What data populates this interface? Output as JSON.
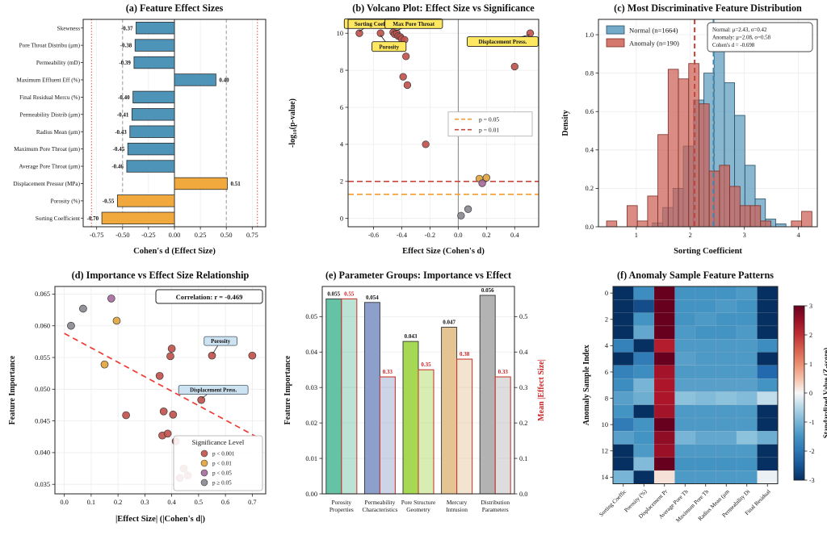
{
  "figure": {
    "background": "#FFFFFF"
  },
  "colors": {
    "bar_blue": "#4E94B8",
    "bar_orange": "#F1A83C",
    "sig_red": "#C0534D",
    "sig_yellow": "#E2A53F",
    "sig_purple": "#A66B9E",
    "sig_gray": "#8A8A92",
    "thresh_orange": "#F39C2D",
    "thresh_red": "#C8463B",
    "hist_blue": "#5B9BBE",
    "hist_red": "#CC5F54",
    "mean_blue": "#3C85B0",
    "mean_red": "#C44536",
    "trend_red": "#EE3B33",
    "annot_yellow": "#FFE860",
    "annot_blue": "#CEE3F2",
    "set2": [
      "#66C2A5",
      "#8DA0CB",
      "#A6D854",
      "#E5C494",
      "#B3B3B3"
    ],
    "effect_edge": "#CC3B33",
    "effect_label": "#CC2222",
    "axis": "#222222",
    "grid": "#ECECEC"
  },
  "chart_data": [
    {
      "type": "bar",
      "panel": "a",
      "title": "(a) Feature Effect Sizes",
      "xlabel": "Cohen's d (Effect Size)",
      "categories": [
        "Skewness",
        "Pore Throat Distribu (μm)",
        "Permeability (mD)",
        "Maximum Effluent Eff (%)",
        "Final Residual Mercu (%)",
        "Permeability Distrib (μm)",
        "Radius Mean (μm)",
        "Maximum Pore Throat  (μm)",
        "Average Pore Throat  (μm)",
        "Displacement Pressur (MPa)",
        "Porosity (%)",
        "Sorting Coefficient"
      ],
      "values": [
        -0.37,
        -0.38,
        -0.39,
        0.4,
        -0.4,
        -0.41,
        -0.43,
        -0.45,
        -0.46,
        0.51,
        -0.55,
        -0.7
      ],
      "value_labels": [
        "-0.37",
        "-0.38",
        "-0.39",
        "0.40",
        "-0.40",
        "-0.41",
        "-0.43",
        "-0.45",
        "-0.46",
        "0.51",
        "-0.55",
        "-0.70"
      ],
      "bar_colors": [
        "blue",
        "blue",
        "blue",
        "blue",
        "blue",
        "blue",
        "blue",
        "blue",
        "blue",
        "orange",
        "orange",
        "orange"
      ],
      "xlim": [
        -0.88,
        0.88
      ],
      "xticks": [
        -0.75,
        -0.5,
        -0.25,
        0,
        0.25,
        0.5,
        0.75
      ],
      "xtick_labels": [
        "-0.75",
        "-0.50",
        "-0.25",
        "0.00",
        "0.25",
        "0.50",
        "0.75"
      ],
      "ref_gray_dashed": [
        -0.5,
        0.5
      ],
      "ref_red_dotted": [
        -0.8,
        0.8
      ]
    },
    {
      "type": "scatter",
      "panel": "b",
      "title": "(b) Volcano Plot: Effect Size vs Significance",
      "xlabel": "Effect Size (Cohen's d)",
      "ylabel": "-log10(p-value)",
      "xlim": [
        -0.78,
        0.57
      ],
      "ylim": [
        -0.45,
        10.75
      ],
      "xticks": [
        -0.6,
        -0.4,
        -0.2,
        0.0,
        0.2,
        0.4
      ],
      "xtick_labels": [
        "-0.6",
        "-0.4",
        "-0.2",
        "0.0",
        "0.2",
        "0.4"
      ],
      "yticks": [
        0,
        2,
        4,
        6,
        8,
        10
      ],
      "points": [
        {
          "x": -0.7,
          "y": 10.0,
          "c": "red"
        },
        {
          "x": -0.55,
          "y": 10.0,
          "c": "red"
        },
        {
          "x": -0.46,
          "y": 10.05,
          "c": "red"
        },
        {
          "x": -0.45,
          "y": 9.95,
          "c": "red"
        },
        {
          "x": -0.435,
          "y": 10.0,
          "c": "red"
        },
        {
          "x": -0.425,
          "y": 9.85,
          "c": "red"
        },
        {
          "x": -0.41,
          "y": 9.8,
          "c": "red"
        },
        {
          "x": -0.4,
          "y": 9.7,
          "c": "red"
        },
        {
          "x": -0.38,
          "y": 9.65,
          "c": "red"
        },
        {
          "x": -0.37,
          "y": 8.75,
          "c": "red"
        },
        {
          "x": -0.39,
          "y": 7.65,
          "c": "red"
        },
        {
          "x": -0.36,
          "y": 7.2,
          "c": "red"
        },
        {
          "x": -0.23,
          "y": 4.0,
          "c": "red"
        },
        {
          "x": 0.02,
          "y": 0.15,
          "c": "gray"
        },
        {
          "x": 0.07,
          "y": 0.5,
          "c": "gray"
        },
        {
          "x": 0.15,
          "y": 2.15,
          "c": "yellow"
        },
        {
          "x": 0.2,
          "y": 2.2,
          "c": "yellow"
        },
        {
          "x": 0.17,
          "y": 1.9,
          "c": "purple"
        },
        {
          "x": 0.4,
          "y": 8.2,
          "c": "red"
        },
        {
          "x": 0.51,
          "y": 10.0,
          "c": "red"
        }
      ],
      "thresholds": [
        {
          "label": "p = 0.05",
          "y": 1.3,
          "color": "orange"
        },
        {
          "label": "p = 0.01",
          "y": 2.0,
          "color": "red"
        }
      ],
      "annotations": [
        {
          "text": "Sorting Coeff.",
          "bx": -0.615,
          "by": 10.52,
          "px": -0.7,
          "py": 10.1
        },
        {
          "text": "Max Pore Throat",
          "bx": -0.315,
          "by": 10.52,
          "px": -0.445,
          "py": 10.12
        },
        {
          "text": "Porosity",
          "bx": -0.49,
          "by": 9.28,
          "px": -0.55,
          "py": 9.9
        },
        {
          "text": "Displacement Press.",
          "bx": 0.315,
          "by": 9.55,
          "px": 0.505,
          "py": 9.92
        }
      ]
    },
    {
      "type": "histogram",
      "panel": "c",
      "title": "(c) Most Discriminative Feature Distribution",
      "xlabel": "Sorting Coefficient",
      "ylabel": "Density",
      "xlim": [
        0.3,
        4.35
      ],
      "ylim": [
        0,
        1.08
      ],
      "xticks": [
        1,
        2,
        3,
        4
      ],
      "yticks": [
        0.0,
        0.2,
        0.4,
        0.6,
        0.8,
        1.0
      ],
      "ytick_labels": [
        "0.0",
        "0.2",
        "0.4",
        "0.6",
        "0.8",
        "1.0"
      ],
      "series": [
        {
          "name": "Normal (n=1664)",
          "color": "blue",
          "bin_start": 1.3,
          "bin_width": 0.19,
          "mean": 2.43,
          "heights": [
            0.02,
            0.1,
            0.2,
            0.42,
            0.66,
            0.8,
            1.02,
            0.75,
            0.58,
            0.32,
            0.145,
            0.04,
            0.015
          ]
        },
        {
          "name": "Anomaly (n=190)",
          "color": "red",
          "bin_start": 0.45,
          "bin_width": 0.19,
          "mean": 2.08,
          "heights": [
            0.03,
            0,
            0.11,
            0.03,
            0.16,
            0.48,
            0.82,
            0.77,
            0.85,
            0.64,
            0.29,
            0.32,
            0.21,
            0.11,
            0.11,
            0.03,
            0,
            0,
            0.03,
            0.08
          ]
        }
      ],
      "stats_box": [
        "Normal: μ=2.43, σ=0.42",
        "Anomaly: μ=2.08, σ=0.58",
        "Cohen's d = -0.698"
      ]
    },
    {
      "type": "scatter",
      "panel": "d",
      "title": "(d) Importance vs Effect Size Relationship",
      "xlabel": "|Effect Size| (|Cohen's d|)",
      "ylabel": "Feature Importance",
      "xlim": [
        -0.035,
        0.75
      ],
      "ylim": [
        0.0335,
        0.0662
      ],
      "xticks": [
        0.0,
        0.1,
        0.2,
        0.3,
        0.4,
        0.5,
        0.6,
        0.7
      ],
      "xtick_labels": [
        "0.0",
        "0.1",
        "0.2",
        "0.3",
        "0.4",
        "0.5",
        "0.6",
        "0.7"
      ],
      "yticks": [
        0.035,
        0.04,
        0.045,
        0.05,
        0.055,
        0.06,
        0.065
      ],
      "ytick_labels": [
        "0.035",
        "0.040",
        "0.045",
        "0.050",
        "0.055",
        "0.060",
        "0.065"
      ],
      "points": [
        {
          "x": 0.025,
          "y": 0.06,
          "c": "gray"
        },
        {
          "x": 0.07,
          "y": 0.0627,
          "c": "gray"
        },
        {
          "x": 0.175,
          "y": 0.0643,
          "c": "purple"
        },
        {
          "x": 0.195,
          "y": 0.0608,
          "c": "yellow"
        },
        {
          "x": 0.15,
          "y": 0.0539,
          "c": "yellow"
        },
        {
          "x": 0.23,
          "y": 0.0459,
          "c": "red"
        },
        {
          "x": 0.355,
          "y": 0.0521,
          "c": "red"
        },
        {
          "x": 0.365,
          "y": 0.0427,
          "c": "red"
        },
        {
          "x": 0.37,
          "y": 0.0465,
          "c": "red"
        },
        {
          "x": 0.385,
          "y": 0.043,
          "c": "red"
        },
        {
          "x": 0.395,
          "y": 0.0552,
          "c": "red"
        },
        {
          "x": 0.4,
          "y": 0.0564,
          "c": "red"
        },
        {
          "x": 0.405,
          "y": 0.046,
          "c": "red"
        },
        {
          "x": 0.415,
          "y": 0.0418,
          "c": "red"
        },
        {
          "x": 0.43,
          "y": 0.036,
          "c": "red"
        },
        {
          "x": 0.445,
          "y": 0.0375,
          "c": "red"
        },
        {
          "x": 0.46,
          "y": 0.0364,
          "c": "red"
        },
        {
          "x": 0.51,
          "y": 0.0483,
          "c": "red"
        },
        {
          "x": 0.55,
          "y": 0.0553,
          "c": "red"
        },
        {
          "x": 0.7,
          "y": 0.0553,
          "c": "red"
        }
      ],
      "trend": {
        "x1": 0.0,
        "y1": 0.0588,
        "x2": 0.72,
        "y2": 0.0424
      },
      "corr_text": "Correlation: r = -0.469",
      "legend": {
        "title": "Significance Level",
        "entries": [
          {
            "label": "p < 0.001",
            "c": "red"
          },
          {
            "label": "p < 0.01",
            "c": "yellow"
          },
          {
            "label": "p < 0.05",
            "c": "purple"
          },
          {
            "label": "p ≥ 0.05",
            "c": "gray"
          }
        ]
      },
      "annotations": [
        {
          "text": "Porosity",
          "bx": 0.582,
          "by": 0.0576,
          "px": 0.553,
          "py": 0.0556
        },
        {
          "text": "Displacement Press.",
          "bx": 0.555,
          "by": 0.0499,
          "px": 0.513,
          "py": 0.0486
        }
      ]
    },
    {
      "type": "grouped_bar",
      "panel": "e",
      "title": "(e) Parameter Groups: Importance vs Effect",
      "ylabel_left": "Feature Importance",
      "ylabel_right": "Mean |Effect Size|",
      "categories": [
        [
          "Porosity",
          "Properties"
        ],
        [
          "Permeability",
          "Characteristics"
        ],
        [
          "Pore Structure",
          "Geometry"
        ],
        [
          "Mercury",
          "Intrusion"
        ],
        [
          "Distribution",
          "Parameters"
        ]
      ],
      "importance": [
        0.055,
        0.054,
        0.043,
        0.047,
        0.056
      ],
      "importance_labels": [
        "0.055",
        "0.054",
        "0.043",
        "0.047",
        "0.056"
      ],
      "effect": [
        0.55,
        0.33,
        0.35,
        0.38,
        0.33
      ],
      "effect_labels": [
        "0.55",
        "0.33",
        "0.35",
        "0.38",
        "0.33"
      ],
      "ylim_left": [
        0,
        0.0585
      ],
      "yticks_left": [
        0.0,
        0.01,
        0.02,
        0.03,
        0.04,
        0.05
      ],
      "ytick_left_labels": [
        "0.00",
        "0.01",
        "0.02",
        "0.03",
        "0.04",
        "0.05"
      ],
      "ylim_right": [
        0,
        0.585
      ],
      "yticks_right": [
        0.0,
        0.1,
        0.2,
        0.3,
        0.4,
        0.5
      ],
      "ytick_right_labels": [
        "0.0",
        "0.1",
        "0.2",
        "0.3",
        "0.4",
        "0.5"
      ]
    },
    {
      "type": "heatmap",
      "panel": "f",
      "title": "(f) Anomaly Sample Feature Patterns",
      "ylabel": "Anomaly Sample Index",
      "columns": [
        "Sorting Coeffic",
        "Porosity (%)",
        "Displacement Pr",
        "Average Pore Th",
        "Maximum Pore Th",
        "Radius Mean (μm",
        "Permeability Di",
        "Final Residual"
      ],
      "yticks": [
        0,
        2,
        4,
        6,
        8,
        10,
        12,
        14
      ],
      "vmin": -3,
      "vmax": 3,
      "colorbar_label": "Standardized Value (Z-score)",
      "colorbar_ticks": [
        3,
        2,
        1,
        0,
        -1,
        -2,
        -3
      ],
      "matrix": [
        [
          -3.0,
          -1.6,
          3.0,
          -1.5,
          -1.5,
          -1.5,
          -1.4,
          -3.0
        ],
        [
          -3.0,
          -2.6,
          3.0,
          -1.5,
          -1.5,
          -1.4,
          -1.5,
          -3.0
        ],
        [
          -3.0,
          -1.5,
          3.0,
          -1.5,
          -1.4,
          -1.5,
          -1.5,
          -3.0
        ],
        [
          -3.0,
          -1.2,
          3.0,
          -1.4,
          -1.5,
          -1.5,
          -1.4,
          -3.0
        ],
        [
          -1.8,
          -3.0,
          2.2,
          -1.4,
          -1.4,
          -1.4,
          -1.4,
          -1.6
        ],
        [
          -3.0,
          -1.9,
          3.0,
          -1.3,
          -1.4,
          -1.4,
          -1.4,
          -3.0
        ],
        [
          -1.8,
          -1.6,
          2.4,
          -1.4,
          -1.4,
          -1.4,
          -1.4,
          -2.2
        ],
        [
          -1.6,
          -1.0,
          2.3,
          -1.3,
          -1.3,
          -1.3,
          -1.3,
          -1.5
        ],
        [
          -1.3,
          -1.1,
          2.3,
          -0.8,
          -0.9,
          -0.8,
          -0.9,
          -0.4
        ],
        [
          -1.5,
          -3.0,
          2.4,
          -1.4,
          -1.4,
          -1.4,
          -1.4,
          -3.0
        ],
        [
          -1.9,
          -1.5,
          3.0,
          -1.4,
          -1.4,
          -1.4,
          -1.4,
          -3.0
        ],
        [
          -1.3,
          -1.5,
          2.6,
          -1.0,
          -1.2,
          -1.2,
          -0.8,
          -1.1
        ],
        [
          -3.0,
          -1.4,
          2.5,
          -1.4,
          -1.4,
          -1.4,
          -1.4,
          -3.0
        ],
        [
          -3.0,
          -0.9,
          3.0,
          -1.5,
          -1.5,
          -1.5,
          -1.5,
          -3.0
        ],
        [
          -1.0,
          -3.0,
          0.2,
          -1.4,
          -1.4,
          -1.4,
          -1.4,
          -0.1
        ]
      ]
    }
  ]
}
